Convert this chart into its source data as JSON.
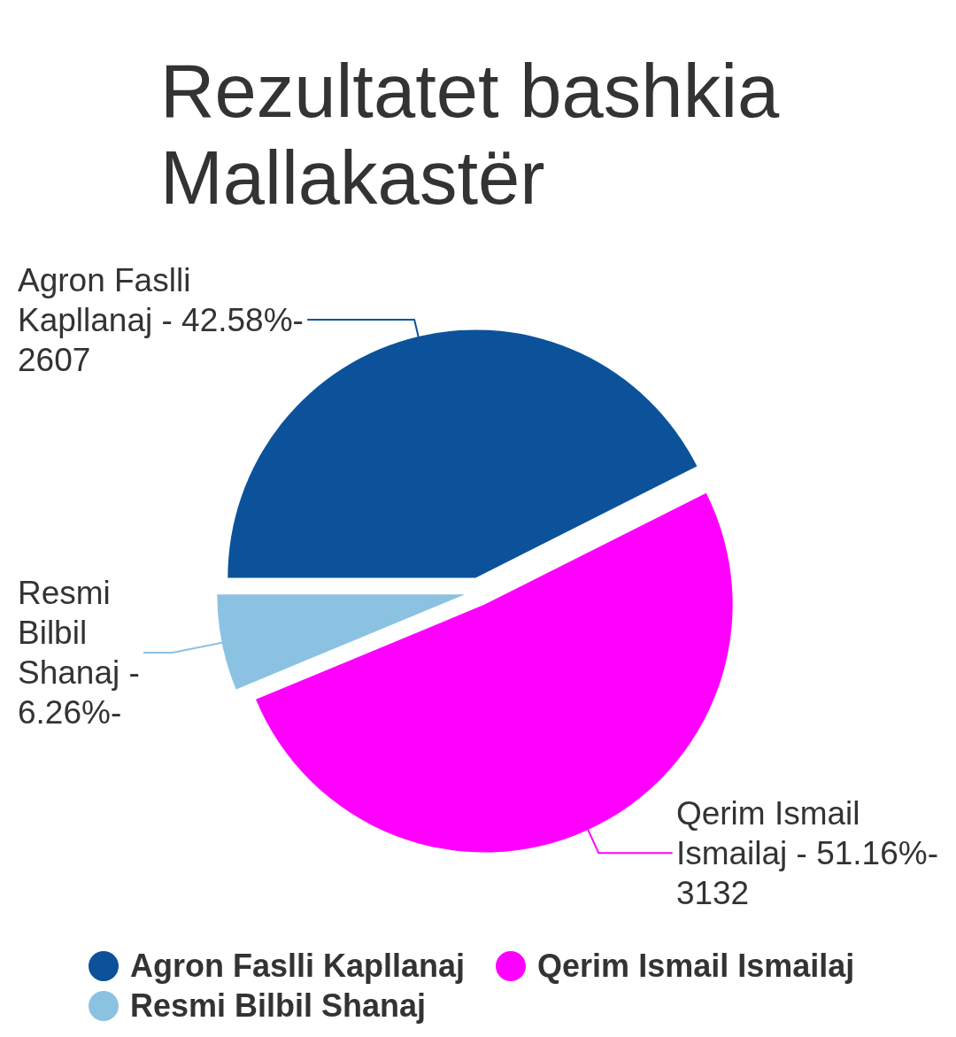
{
  "chart_data": {
    "type": "pie",
    "title": "Rezultatet bashkia Mallakastër",
    "categories": [
      "Agron Faslli Kapllanaj",
      "Qerim Ismail Ismailaj",
      "Resmi Bilbil Shanaj"
    ],
    "values": [
      42.58,
      51.16,
      6.26
    ],
    "colors": [
      "#0b529b",
      "#ff00ff",
      "#8bc2e2"
    ],
    "annotations": [
      "Agron Faslli Kapllanaj - 42.58%- 2607",
      "Qerim Ismail Ismailaj - 51.16%- 3132",
      "Resmi Bilbil Shanaj - 6.26%-"
    ],
    "legend": "bottom"
  }
}
